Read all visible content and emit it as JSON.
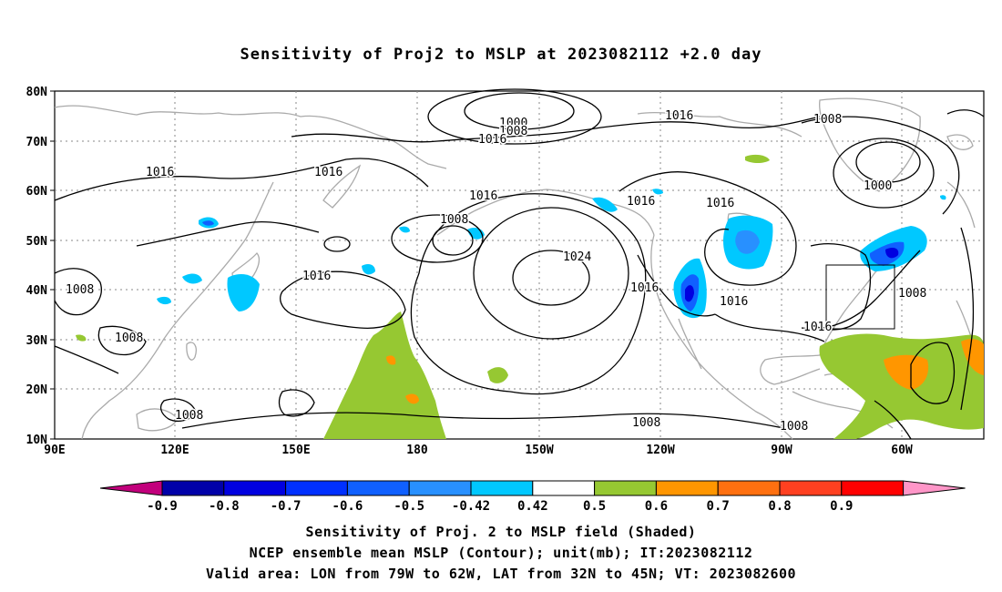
{
  "title": "Sensitivity of Proj2 to MSLP at 2023082112 +2.0 day",
  "map": {
    "lat_ticks": [
      "80N",
      "70N",
      "60N",
      "50N",
      "40N",
      "30N",
      "20N",
      "10N"
    ],
    "lon_ticks": [
      "90E",
      "120E",
      "150E",
      "180",
      "150W",
      "120W",
      "90W",
      "60W"
    ],
    "contour_labels": {
      "c1000_a": "1000",
      "c1008_a": "1008",
      "c1016_a": "1016",
      "c1016_b": "1016",
      "c1008_b": "1008",
      "c1016_c": "1016",
      "c1008_c": "1008",
      "c1000_b": "1000",
      "c1016_d": "1016",
      "c1016_e": "1016",
      "c1008_d": "1008",
      "c1016_f": "1016",
      "c1024": "1024",
      "c1016_g": "1016",
      "c1008_e": "1008",
      "c1016_h": "1016",
      "c1016_i": "1016",
      "c1016_j": "1016",
      "c1016_k": "1016",
      "c1008_f": "1008",
      "c1008_g": "1008",
      "c1008_h": "1008",
      "c1008_i": "1008",
      "c1008_j": "1008"
    },
    "valid_area": {
      "lon": [
        -79,
        -62
      ],
      "lat": [
        32,
        45
      ]
    }
  },
  "colorbar": {
    "labels": [
      "-0.9",
      "-0.8",
      "-0.7",
      "-0.6",
      "-0.5",
      "-0.42",
      "0.42",
      "0.5",
      "0.6",
      "0.7",
      "0.8",
      "0.9"
    ],
    "colors": [
      "#c2007c",
      "#0000a8",
      "#0000e0",
      "#0030ff",
      "#1060ff",
      "#2890ff",
      "#00c8ff",
      "#ffffff",
      "#96c832",
      "#ff9600",
      "#ff7010",
      "#ff4020",
      "#ff0000",
      "#ff96c8"
    ]
  },
  "caption": {
    "line1": "Sensitivity of Proj. 2 to MSLP field (Shaded)",
    "line2": "NCEP ensemble mean MSLP (Contour); unit(mb); IT:2023082112",
    "line3": "Valid area: LON from 79W to 62W, LAT from 32N to 45N; VT: 2023082600"
  }
}
